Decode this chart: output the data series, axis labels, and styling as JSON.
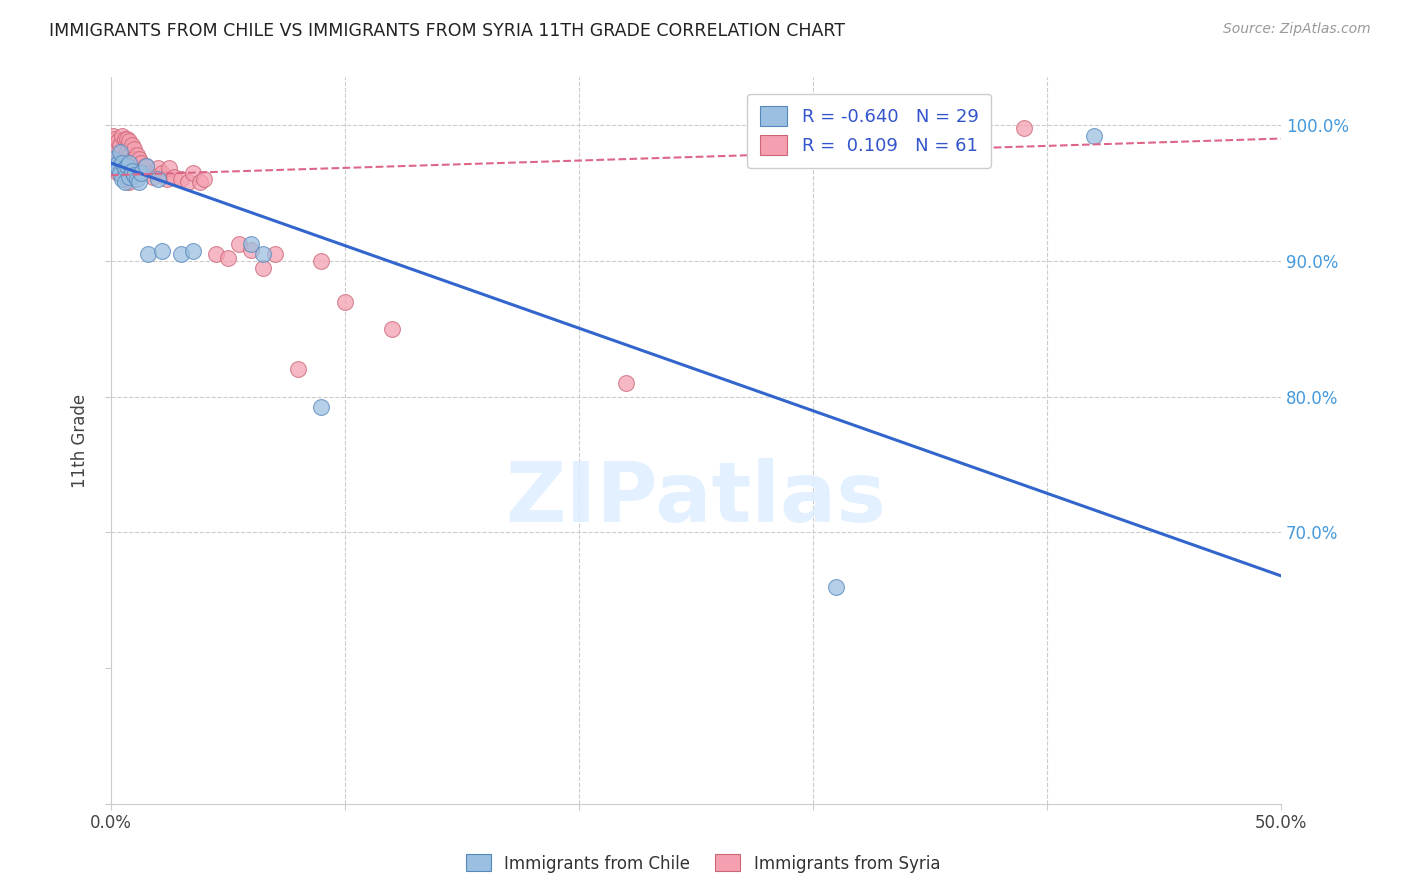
{
  "title": "IMMIGRANTS FROM CHILE VS IMMIGRANTS FROM SYRIA 11TH GRADE CORRELATION CHART",
  "source": "Source: ZipAtlas.com",
  "ylabel": "11th Grade",
  "xlim": [
    0.0,
    0.5
  ],
  "ylim": [
    0.5,
    1.035
  ],
  "ytick_positions": [
    0.5,
    0.6,
    0.7,
    0.8,
    0.9,
    1.0
  ],
  "ytick_labels": [
    "",
    "",
    "70.0%",
    "80.0%",
    "90.0%",
    "100.0%"
  ],
  "xtick_positions": [
    0.0,
    0.1,
    0.2,
    0.3,
    0.4,
    0.5
  ],
  "xtick_labels": [
    "0.0%",
    "",
    "",
    "",
    "",
    "50.0%"
  ],
  "blue_color": "#9BBFE0",
  "pink_color": "#F4A0B0",
  "blue_edge": "#5588BB",
  "pink_edge": "#CC6677",
  "blue_line_color": "#3366CC",
  "pink_line_color": "#DD6688",
  "watermark": "ZIPatlas",
  "blue_line_x0": 0.0,
  "blue_line_y0": 0.972,
  "blue_line_x1": 0.5,
  "blue_line_y1": 0.668,
  "pink_line_x0": 0.0,
  "pink_line_y0": 0.963,
  "pink_line_x1": 0.5,
  "pink_line_y1": 0.99,
  "blue_scatter_x": [
    0.001,
    0.002,
    0.003,
    0.003,
    0.004,
    0.004,
    0.005,
    0.005,
    0.006,
    0.006,
    0.007,
    0.008,
    0.008,
    0.009,
    0.01,
    0.011,
    0.012,
    0.013,
    0.015,
    0.016,
    0.02,
    0.022,
    0.03,
    0.035,
    0.06,
    0.065,
    0.09,
    0.31,
    0.42
  ],
  "blue_scatter_y": [
    0.975,
    0.97,
    0.972,
    0.968,
    0.98,
    0.965,
    0.972,
    0.96,
    0.968,
    0.958,
    0.97,
    0.972,
    0.962,
    0.966,
    0.963,
    0.96,
    0.958,
    0.965,
    0.97,
    0.905,
    0.96,
    0.907,
    0.905,
    0.907,
    0.912,
    0.905,
    0.792,
    0.66,
    0.992
  ],
  "pink_scatter_x": [
    0.001,
    0.001,
    0.002,
    0.002,
    0.002,
    0.003,
    0.003,
    0.003,
    0.004,
    0.004,
    0.005,
    0.005,
    0.005,
    0.006,
    0.006,
    0.006,
    0.007,
    0.007,
    0.007,
    0.007,
    0.008,
    0.008,
    0.008,
    0.008,
    0.009,
    0.009,
    0.009,
    0.01,
    0.01,
    0.01,
    0.011,
    0.011,
    0.012,
    0.012,
    0.013,
    0.014,
    0.015,
    0.016,
    0.018,
    0.02,
    0.022,
    0.024,
    0.025,
    0.027,
    0.03,
    0.033,
    0.035,
    0.038,
    0.04,
    0.045,
    0.05,
    0.055,
    0.06,
    0.065,
    0.07,
    0.08,
    0.09,
    0.1,
    0.12,
    0.22,
    0.39
  ],
  "pink_scatter_y": [
    0.992,
    0.978,
    0.99,
    0.982,
    0.97,
    0.988,
    0.975,
    0.965,
    0.985,
    0.972,
    0.992,
    0.98,
    0.968,
    0.99,
    0.978,
    0.965,
    0.99,
    0.98,
    0.97,
    0.96,
    0.988,
    0.978,
    0.968,
    0.958,
    0.985,
    0.975,
    0.965,
    0.982,
    0.975,
    0.965,
    0.978,
    0.968,
    0.975,
    0.965,
    0.972,
    0.968,
    0.97,
    0.965,
    0.962,
    0.968,
    0.965,
    0.96,
    0.968,
    0.962,
    0.96,
    0.958,
    0.965,
    0.958,
    0.96,
    0.905,
    0.902,
    0.912,
    0.908,
    0.895,
    0.905,
    0.82,
    0.9,
    0.87,
    0.85,
    0.81,
    0.998
  ]
}
